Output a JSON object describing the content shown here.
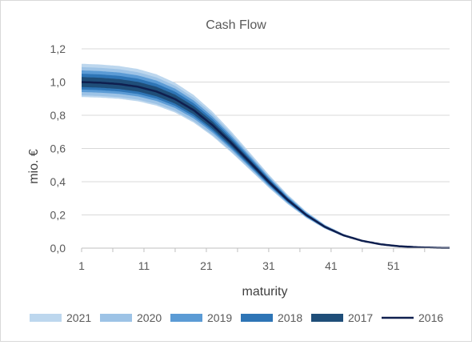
{
  "chart_data": {
    "type": "area",
    "title": "Cash Flow",
    "xlabel": "maturity",
    "ylabel": "mio. €",
    "xlim": [
      1,
      60
    ],
    "ylim": [
      0,
      1.2
    ],
    "x_ticks": [
      "1",
      "11",
      "21",
      "31",
      "41",
      "51"
    ],
    "y_ticks": [
      "0,0",
      "0,2",
      "0,4",
      "0,6",
      "0,8",
      "1,0",
      "1,2"
    ],
    "grid": "horizontal",
    "legend_position": "bottom",
    "colors": {
      "2021": "#bdd7ee",
      "2020": "#9dc3e6",
      "2019": "#5b9bd5",
      "2018": "#2e75b6",
      "2017": "#1f4e79",
      "2016": "#0f1f4f",
      "grid": "#d9d9d9"
    },
    "series": [
      {
        "name": "2021",
        "kind": "fan band",
        "band": [
          0.91,
          1.11
        ]
      },
      {
        "name": "2020",
        "kind": "fan band",
        "band": [
          0.92,
          1.09
        ]
      },
      {
        "name": "2019",
        "kind": "fan band",
        "band": [
          0.94,
          1.07
        ]
      },
      {
        "name": "2018",
        "kind": "fan band",
        "band": [
          0.955,
          1.05
        ]
      },
      {
        "name": "2017",
        "kind": "fan band",
        "band": [
          0.97,
          1.03
        ]
      },
      {
        "name": "2016",
        "kind": "line",
        "x": [
          1,
          4,
          7,
          10,
          13,
          16,
          19,
          22,
          25,
          28,
          31,
          34,
          37,
          40,
          43,
          46,
          49,
          52,
          55,
          58,
          60
        ],
        "values": [
          1.0,
          0.996,
          0.988,
          0.972,
          0.943,
          0.897,
          0.83,
          0.74,
          0.633,
          0.517,
          0.4,
          0.292,
          0.2,
          0.128,
          0.077,
          0.044,
          0.023,
          0.011,
          0.005,
          0.002,
          0.001
        ]
      }
    ]
  }
}
